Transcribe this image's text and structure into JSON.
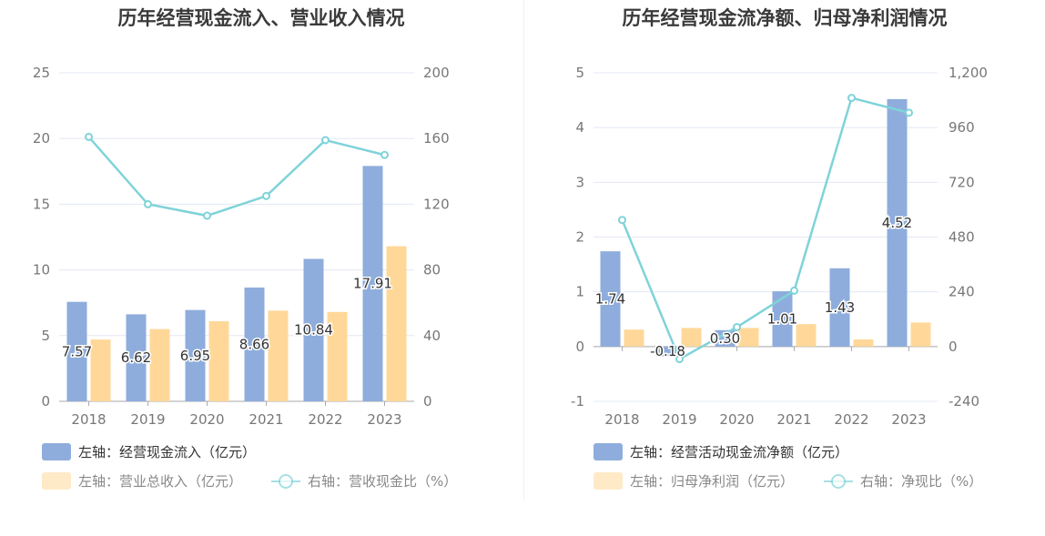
{
  "charts": [
    {
      "title": "历年经营现金流入、营业收入情况",
      "legend": {
        "bar1": "左轴：经营现金流入（亿元）",
        "bar2": "左轴：营业总收入（亿元）",
        "line": "右轴：营收现金比（%）"
      }
    },
    {
      "title": "历年经营现金流净额、归母净利润情况",
      "legend": {
        "bar1": "左轴：经营活动现金流净额（亿元）",
        "bar2": "左轴：归母净利润（亿元）",
        "line": "右轴：净现比（%）"
      }
    }
  ],
  "colors": {
    "bar1": "#8eaddc",
    "bar2": "#ffd899",
    "line": "#7fd3d9",
    "grid": "#e3e8f3"
  },
  "chart_data": [
    {
      "type": "bar",
      "title": "历年经营现金流入、营业收入情况",
      "categories": [
        "2018",
        "2019",
        "2020",
        "2021",
        "2022",
        "2023"
      ],
      "series": [
        {
          "name": "左轴：经营现金流入（亿元）",
          "axis": "left",
          "type": "bar",
          "values": [
            7.57,
            6.62,
            6.95,
            8.66,
            10.84,
            17.91
          ],
          "labels": [
            "7.57",
            "6.62",
            "6.95",
            "8.66",
            "10.84",
            "17.91"
          ]
        },
        {
          "name": "左轴：营业总收入（亿元）",
          "axis": "left",
          "type": "bar",
          "values": [
            4.7,
            5.5,
            6.1,
            6.9,
            6.8,
            11.8
          ]
        },
        {
          "name": "右轴：营收现金比（%）",
          "axis": "right",
          "type": "line",
          "values": [
            161,
            120,
            113,
            125,
            159,
            150
          ]
        }
      ],
      "yleft": {
        "min": 0,
        "max": 25,
        "ticks": [
          "0",
          "5",
          "10",
          "15",
          "20",
          "25"
        ]
      },
      "yright": {
        "min": 0,
        "max": 200,
        "ticks": [
          "0",
          "40",
          "80",
          "120",
          "160",
          "200"
        ]
      }
    },
    {
      "type": "bar",
      "title": "历年经营现金流净额、归母净利润情况",
      "categories": [
        "2018",
        "2019",
        "2020",
        "2021",
        "2022",
        "2023"
      ],
      "series": [
        {
          "name": "左轴：经营活动现金流净额（亿元）",
          "axis": "left",
          "type": "bar",
          "values": [
            1.74,
            -0.18,
            0.3,
            1.01,
            1.43,
            4.52
          ],
          "labels": [
            "1.74",
            "-0.18",
            "0.30",
            "1.01",
            "1.43",
            "4.52"
          ]
        },
        {
          "name": "左轴：归母净利润（亿元）",
          "axis": "left",
          "type": "bar",
          "values": [
            0.31,
            0.34,
            0.34,
            0.41,
            0.13,
            0.44
          ]
        },
        {
          "name": "右轴：净现比（%）",
          "axis": "right",
          "type": "line",
          "values": [
            555,
            -55,
            85,
            245,
            1090,
            1025
          ]
        }
      ],
      "yleft": {
        "min": -1,
        "max": 5,
        "ticks": [
          "-1",
          "0",
          "1",
          "2",
          "3",
          "4",
          "5"
        ]
      },
      "yright": {
        "min": -240,
        "max": 1200,
        "ticks": [
          "-240",
          "0",
          "240",
          "480",
          "720",
          "960",
          "1,200"
        ]
      }
    }
  ]
}
